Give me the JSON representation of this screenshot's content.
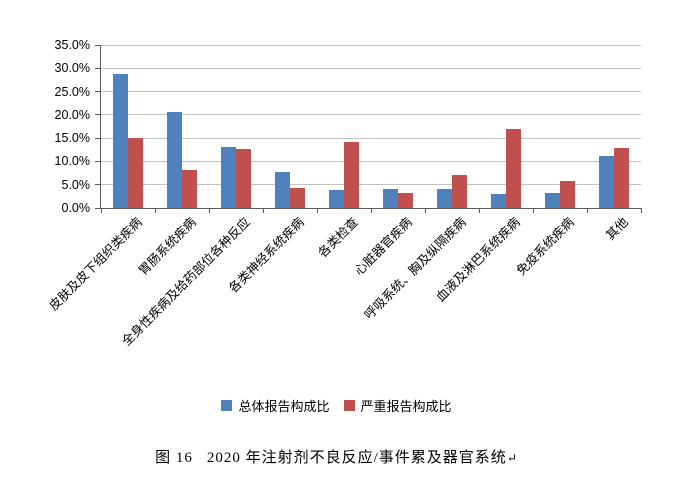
{
  "chart_data": {
    "type": "bar",
    "title": "",
    "xlabel": "",
    "ylabel": "",
    "ylim": [
      0,
      35
    ],
    "ytick_step": 5,
    "yticks": [
      "0.0%",
      "5.0%",
      "10.0%",
      "15.0%",
      "20.0%",
      "25.0%",
      "30.0%",
      "35.0%"
    ],
    "grid": true,
    "legend_position": "bottom",
    "categories": [
      "皮肤及皮下组织类疾病",
      "胃肠系统疾病",
      "全身性疾病及给药部位各种反应",
      "各类神经系统疾病",
      "各类检查",
      "心脏器官疾病",
      "呼吸系统、胸及纵隔疾病",
      "血液及淋巴系统疾病",
      "免疫系统疾病",
      "其他"
    ],
    "series": [
      {
        "name": "总体报告构成比",
        "color": "#4F81BD",
        "values": [
          28.8,
          20.6,
          13.2,
          7.8,
          3.9,
          4.0,
          4.0,
          3.0,
          3.2,
          11.1
        ]
      },
      {
        "name": "严重报告构成比",
        "color": "#C0504D",
        "values": [
          15.0,
          8.2,
          12.7,
          4.3,
          14.2,
          3.3,
          7.1,
          17.0,
          5.8,
          12.9
        ]
      }
    ]
  },
  "caption": {
    "label": "图 16",
    "text": "2020 年注射剂不良反应/事件累及器官系统",
    "mark": "↵"
  },
  "style_colors": {
    "gridline": "#C3C3C3",
    "axis": "#595959",
    "text": "#000000",
    "background": "#FFFFFF"
  }
}
